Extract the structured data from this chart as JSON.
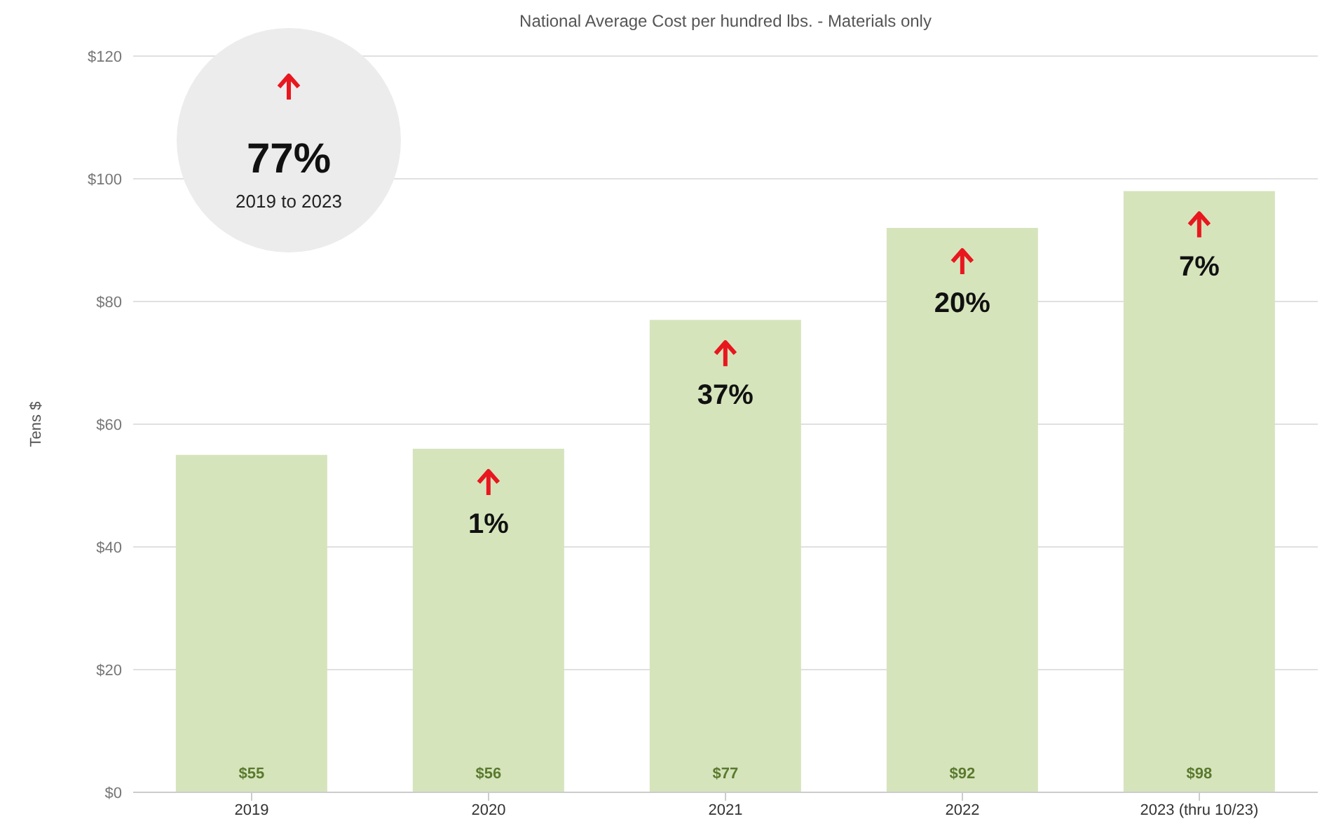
{
  "chart_data": {
    "type": "bar",
    "title": "National Average Cost per hundred lbs. - Materials only",
    "ylabel": "Tens $",
    "categories": [
      "2019",
      "2020",
      "2021",
      "2022",
      "2023 (thru 10/23)"
    ],
    "values": [
      55,
      56,
      77,
      92,
      98
    ],
    "color": "#d6e4bc",
    "value_labels": [
      "$55",
      "$56",
      "$77",
      "$92",
      "$98"
    ],
    "ylim": [
      0,
      120
    ],
    "yticks": [
      {
        "value": 0,
        "label": "$0"
      },
      {
        "value": 20,
        "label": "$20"
      },
      {
        "value": 40,
        "label": "$40"
      },
      {
        "value": 60,
        "label": "$60"
      },
      {
        "value": 80,
        "label": "$80"
      },
      {
        "value": 100,
        "label": "$100"
      },
      {
        "value": 120,
        "label": "$120"
      }
    ],
    "grid": "y",
    "annotations": [
      "77%",
      "2019 to 2023",
      "1%",
      "37%",
      "20%",
      "7%"
    ]
  }
}
